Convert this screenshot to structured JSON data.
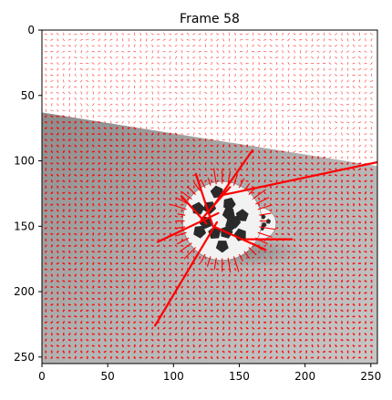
{
  "chart_data": {
    "type": "scatter",
    "title": "Frame 58",
    "xlabel": "",
    "ylabel": "",
    "xlim": [
      0,
      255
    ],
    "ylim": [
      255,
      0
    ],
    "x_ticks": [
      0,
      50,
      100,
      150,
      200,
      250
    ],
    "y_ticks": [
      0,
      50,
      100,
      150,
      200,
      250
    ],
    "x_tick_labels": [
      "0",
      "50",
      "100",
      "150",
      "200",
      "250"
    ],
    "y_tick_labels": [
      "0",
      "50",
      "100",
      "150",
      "200",
      "250"
    ],
    "grid": false,
    "colors": {
      "vectors": "#ff0000",
      "sky": "#ffffff",
      "floor_light": "#bdbdbd",
      "floor_dark": "#8f8f8f",
      "ball_light": "#f2f2f2",
      "ball_dark": "#2a2a2a"
    },
    "scene": {
      "horizon": {
        "x": [
          0,
          255
        ],
        "y": [
          63,
          104
        ]
      },
      "large_ball": {
        "cx": 137,
        "cy": 146,
        "r": 30
      },
      "small_ball": {
        "cx": 166,
        "cy": 148,
        "r": 12
      }
    },
    "flow_vectors": [
      {
        "x0": 138,
        "y0": 126,
        "x1": 255,
        "y1": 101
      },
      {
        "x0": 133,
        "y0": 147,
        "x1": 86,
        "y1": 226
      },
      {
        "x0": 134,
        "y0": 140,
        "x1": 88,
        "y1": 162
      },
      {
        "x0": 130,
        "y0": 135,
        "x1": 160,
        "y1": 92
      },
      {
        "x0": 130,
        "y0": 150,
        "x1": 117,
        "y1": 110
      },
      {
        "x0": 130,
        "y0": 150,
        "x1": 170,
        "y1": 168
      },
      {
        "x0": 125,
        "y0": 148,
        "x1": 106,
        "y1": 127
      },
      {
        "x0": 155,
        "y0": 160,
        "x1": 190,
        "y1": 160
      },
      {
        "x0": 121,
        "y0": 145,
        "x1": 143,
        "y1": 120
      }
    ]
  }
}
